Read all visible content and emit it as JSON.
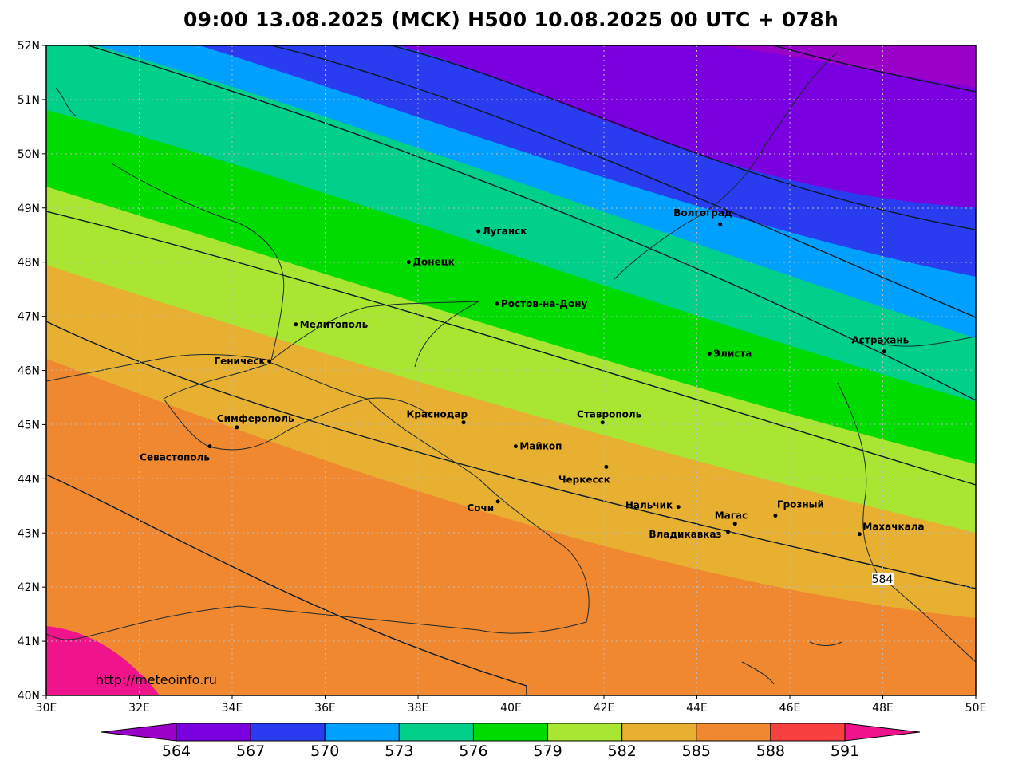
{
  "title": "09:00 13.08.2025 (MCK) H500  10.08.2025 00 UTC + 078h",
  "url_label": "http://meteoinfo.ru",
  "map": {
    "lon_range": [
      30,
      50
    ],
    "lat_range": [
      40,
      52
    ],
    "lon_ticks": [
      "30E",
      "32E",
      "34E",
      "36E",
      "38E",
      "40E",
      "42E",
      "44E",
      "46E",
      "48E",
      "50E"
    ],
    "lat_ticks": [
      "40N",
      "41N",
      "42N",
      "43N",
      "44N",
      "45N",
      "46N",
      "47N",
      "48N",
      "49N",
      "50N",
      "51N",
      "52N"
    ],
    "grid": true,
    "contour_label": "584"
  },
  "cities": [
    {
      "name": "Волгоград",
      "lon": 44.5,
      "lat": 48.7
    },
    {
      "name": "Луганск",
      "lon": 39.3,
      "lat": 48.57
    },
    {
      "name": "Донецк",
      "lon": 37.8,
      "lat": 48.0
    },
    {
      "name": "Ростов-на-Дону",
      "lon": 39.7,
      "lat": 47.23
    },
    {
      "name": "Мелитополь",
      "lon": 35.37,
      "lat": 46.85
    },
    {
      "name": "Геническ",
      "lon": 34.8,
      "lat": 46.17
    },
    {
      "name": "Элиста",
      "lon": 44.27,
      "lat": 46.31
    },
    {
      "name": "Астрахань",
      "lon": 48.03,
      "lat": 46.35
    },
    {
      "name": "Симферополь",
      "lon": 34.1,
      "lat": 44.95
    },
    {
      "name": "Севастополь",
      "lon": 33.52,
      "lat": 44.6
    },
    {
      "name": "Краснодар",
      "lon": 38.98,
      "lat": 45.04
    },
    {
      "name": "Ставрополь",
      "lon": 41.97,
      "lat": 45.04
    },
    {
      "name": "Майкоп",
      "lon": 40.1,
      "lat": 44.6
    },
    {
      "name": "Черкесск",
      "lon": 42.05,
      "lat": 44.22
    },
    {
      "name": "Сочи",
      "lon": 39.72,
      "lat": 43.58
    },
    {
      "name": "Нальчик",
      "lon": 43.6,
      "lat": 43.48
    },
    {
      "name": "Магас",
      "lon": 44.82,
      "lat": 43.17
    },
    {
      "name": "Грозный",
      "lon": 45.69,
      "lat": 43.32
    },
    {
      "name": "Владикавказ",
      "lon": 44.67,
      "lat": 43.02
    },
    {
      "name": "Махачкала",
      "lon": 47.5,
      "lat": 42.98
    }
  ],
  "colorbar": {
    "labels": [
      "564",
      "567",
      "570",
      "573",
      "576",
      "579",
      "582",
      "585",
      "588",
      "591"
    ],
    "colors": [
      "#9a00c8",
      "#7b00e0",
      "#2a3cf0",
      "#00a0ff",
      "#00d08a",
      "#00dc00",
      "#a8e632",
      "#e8b030",
      "#f08830",
      "#f84040",
      "#f0148c"
    ]
  }
}
